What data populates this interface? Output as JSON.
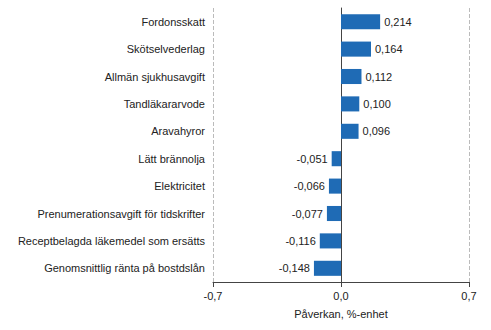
{
  "chart_data": {
    "type": "bar",
    "orientation": "horizontal",
    "categories": [
      "Fordonsskatt",
      "Skötselvederlag",
      "Allmän sjukhusavgift",
      "Tandläkararvode",
      "Aravahyror",
      "Lätt brännolja",
      "Elektricitet",
      "Prenumerationsavgift för tidskrifter",
      "Receptbelagda läkemedel som ersätts",
      "Genomsnittlig ränta på bostdslån"
    ],
    "values": [
      0.214,
      0.164,
      0.112,
      0.1,
      0.096,
      -0.051,
      -0.066,
      -0.077,
      -0.116,
      -0.148
    ],
    "value_labels": [
      "0,214",
      "0,164",
      "0,112",
      "0,100",
      "0,096",
      "-0,051",
      "-0,066",
      "-0,077",
      "-0,116",
      "-0,148"
    ],
    "data_labels": true,
    "color": "#1f6bb5",
    "x_label": "Påverkan, %-enhet",
    "xlim": [
      -0.7,
      0.7
    ],
    "xticks": [
      {
        "value": -0.7,
        "label": "-0,7"
      },
      {
        "value": 0,
        "label": "0,0"
      },
      {
        "value": 0.7,
        "label": "0,7"
      }
    ],
    "grid": true
  }
}
